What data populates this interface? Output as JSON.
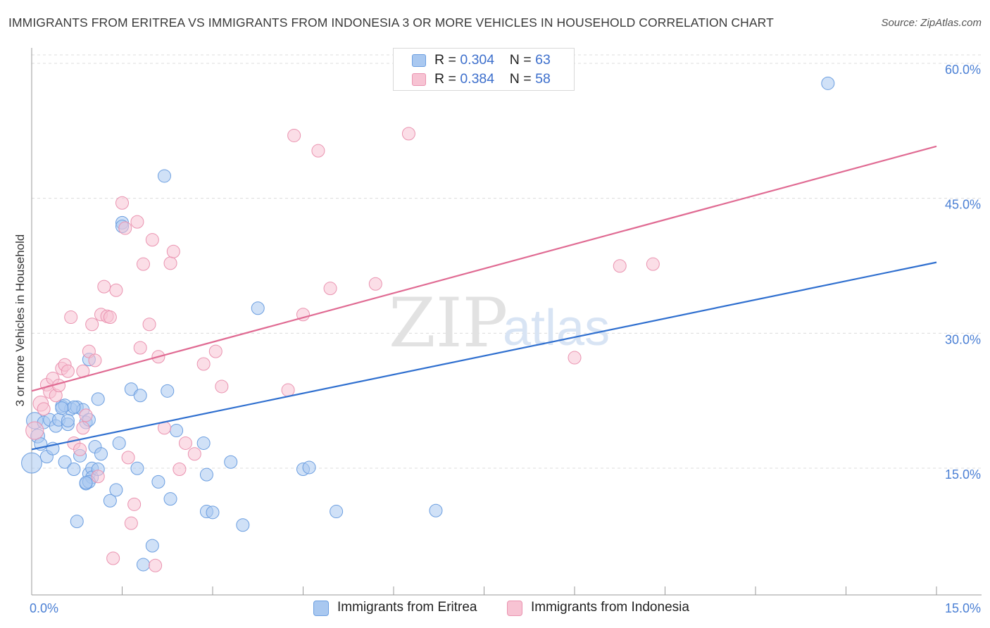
{
  "title": "IMMIGRANTS FROM ERITREA VS IMMIGRANTS FROM INDONESIA 3 OR MORE VEHICLES IN HOUSEHOLD CORRELATION CHART",
  "source": "Source: ZipAtlas.com",
  "colors": {
    "blue_fill": "#a9c8f0",
    "blue_stroke": "#6b9ee0",
    "blue_line": "#2f6fcf",
    "pink_fill": "#f7c3d3",
    "pink_stroke": "#ea93b0",
    "pink_line": "#e06b93",
    "accent_text": "#4a7fd4"
  },
  "legend": {
    "rows": [
      {
        "r_label": "R = ",
        "r_value": "0.304",
        "n_label": "N = ",
        "n_value": "63"
      },
      {
        "r_label": "R = ",
        "r_value": "0.384",
        "n_label": "N = ",
        "n_value": "58"
      }
    ]
  },
  "bottom_legend": {
    "eritrea": "Immigrants from Eritrea",
    "indonesia": "Immigrants from Indonesia"
  },
  "watermark": {
    "zip": "ZIP",
    "atlas": "atlas"
  },
  "chart_data": {
    "type": "scatter",
    "title": "IMMIGRANTS FROM ERITREA VS IMMIGRANTS FROM INDONESIA 3 OR MORE VEHICLES IN HOUSEHOLD CORRELATION CHART",
    "xlabel": "",
    "ylabel": "3 or more Vehicles in Household",
    "xlim": [
      0,
      15
    ],
    "ylim": [
      0,
      62
    ],
    "x_tick_labels": [
      "0.0%",
      "15.0%"
    ],
    "y_ticks": [
      15,
      30,
      45,
      60
    ],
    "y_tick_labels": [
      "15.0%",
      "30.0%",
      "45.0%",
      "60.0%"
    ],
    "grid": true,
    "series": [
      {
        "name": "Immigrants from Eritrea",
        "r": 0.304,
        "n": 63,
        "trend": {
          "x": [
            0,
            15
          ],
          "y": [
            16.3,
            37.1
          ]
        },
        "points": [
          [
            0.0,
            14.8,
            1.6
          ],
          [
            0.05,
            19.5,
            1.3
          ],
          [
            0.1,
            17.8,
            1.1
          ],
          [
            0.15,
            16.9,
            1.0
          ],
          [
            0.2,
            19.3,
            1.0
          ],
          [
            0.25,
            15.5,
            1.0
          ],
          [
            0.3,
            19.6,
            1.0
          ],
          [
            0.35,
            16.4,
            1.0
          ],
          [
            0.4,
            18.9,
            1.0
          ],
          [
            0.45,
            19.6,
            1.0
          ],
          [
            0.5,
            21.1,
            1.0
          ],
          [
            0.55,
            14.9,
            1.0
          ],
          [
            0.6,
            19.1,
            1.0
          ],
          [
            0.65,
            20.8,
            1.0
          ],
          [
            0.7,
            14.1,
            1.0
          ],
          [
            0.75,
            21.0,
            1.0
          ],
          [
            0.8,
            15.6,
            1.0
          ],
          [
            0.85,
            20.7,
            1.0
          ],
          [
            0.9,
            19.3,
            1.0
          ],
          [
            0.95,
            13.6,
            1.0
          ],
          [
            0.55,
            21.2,
            1.0
          ],
          [
            0.7,
            21.0,
            1.0
          ],
          [
            0.75,
            8.3,
            1.0
          ],
          [
            0.6,
            19.5,
            1.0
          ],
          [
            0.9,
            12.5,
            1.0
          ],
          [
            0.95,
            19.6,
            1.0
          ],
          [
            1.0,
            14.2,
            1.0
          ],
          [
            0.95,
            26.3,
            1.0
          ],
          [
            1.0,
            13.2,
            1.0
          ],
          [
            1.05,
            16.6,
            1.0
          ],
          [
            1.1,
            21.9,
            1.0
          ],
          [
            1.15,
            15.8,
            1.0
          ],
          [
            0.95,
            12.7,
            1.0
          ],
          [
            0.9,
            12.6,
            1.0
          ],
          [
            1.3,
            10.6,
            1.0
          ],
          [
            1.4,
            11.8,
            1.0
          ],
          [
            1.45,
            17.0,
            1.0
          ],
          [
            1.5,
            41.5,
            1.0
          ],
          [
            1.5,
            41.1,
            1.0
          ],
          [
            1.65,
            23.0,
            1.0
          ],
          [
            1.8,
            22.3,
            1.0
          ],
          [
            1.75,
            14.2,
            1.0
          ],
          [
            1.85,
            3.5,
            1.0
          ],
          [
            2.0,
            5.6,
            1.0
          ],
          [
            2.1,
            12.7,
            1.0
          ],
          [
            2.2,
            46.7,
            1.0
          ],
          [
            2.25,
            22.8,
            1.0
          ],
          [
            2.3,
            10.8,
            1.0
          ],
          [
            2.4,
            18.4,
            1.0
          ],
          [
            2.85,
            17.0,
            1.0
          ],
          [
            2.9,
            13.5,
            1.0
          ],
          [
            2.9,
            9.4,
            1.0
          ],
          [
            3.0,
            9.3,
            1.0
          ],
          [
            3.3,
            14.9,
            1.0
          ],
          [
            3.5,
            7.9,
            1.0
          ],
          [
            3.75,
            32.0,
            1.0
          ],
          [
            4.5,
            14.1,
            1.0
          ],
          [
            4.6,
            14.3,
            1.0
          ],
          [
            5.05,
            9.4,
            1.0
          ],
          [
            6.7,
            9.5,
            1.0
          ],
          [
            13.2,
            57.0,
            1.0
          ],
          [
            0.5,
            20.9,
            1.0
          ],
          [
            1.1,
            14.1,
            1.0
          ]
        ]
      },
      {
        "name": "Immigrants from Indonesia",
        "r": 0.384,
        "n": 58,
        "trend": {
          "x": [
            0,
            15
          ],
          "y": [
            22.8,
            50.0
          ]
        },
        "points": [
          [
            0.05,
            18.4,
            1.4
          ],
          [
            0.15,
            21.4,
            1.2
          ],
          [
            0.2,
            20.8,
            1.0
          ],
          [
            0.25,
            23.5,
            1.0
          ],
          [
            0.3,
            22.7,
            1.0
          ],
          [
            0.35,
            24.2,
            1.0
          ],
          [
            0.4,
            22.3,
            1.0
          ],
          [
            0.45,
            23.4,
            1.0
          ],
          [
            0.5,
            25.3,
            1.0
          ],
          [
            0.55,
            25.7,
            1.0
          ],
          [
            0.6,
            25.0,
            1.0
          ],
          [
            0.65,
            31.0,
            1.0
          ],
          [
            0.7,
            17.0,
            1.0
          ],
          [
            0.8,
            16.3,
            1.0
          ],
          [
            0.85,
            18.7,
            1.0
          ],
          [
            0.9,
            20.1,
            1.0
          ],
          [
            0.95,
            27.2,
            1.0
          ],
          [
            1.0,
            30.2,
            1.0
          ],
          [
            1.05,
            26.2,
            1.0
          ],
          [
            1.1,
            13.3,
            1.0
          ],
          [
            1.15,
            31.3,
            1.0
          ],
          [
            1.2,
            34.4,
            1.0
          ],
          [
            1.25,
            31.1,
            1.0
          ],
          [
            1.3,
            31.0,
            1.0
          ],
          [
            1.35,
            4.2,
            1.0
          ],
          [
            1.4,
            34.0,
            1.0
          ],
          [
            1.5,
            43.7,
            1.0
          ],
          [
            1.55,
            40.9,
            1.0
          ],
          [
            1.6,
            15.4,
            1.0
          ],
          [
            1.65,
            8.1,
            1.0
          ],
          [
            1.7,
            10.2,
            1.0
          ],
          [
            1.75,
            41.6,
            1.0
          ],
          [
            1.8,
            27.6,
            1.0
          ],
          [
            1.85,
            36.9,
            1.0
          ],
          [
            1.95,
            30.2,
            1.0
          ],
          [
            2.0,
            39.6,
            1.0
          ],
          [
            2.05,
            3.4,
            1.0
          ],
          [
            2.1,
            26.6,
            1.0
          ],
          [
            2.2,
            18.7,
            1.0
          ],
          [
            2.3,
            37.0,
            1.0
          ],
          [
            2.35,
            38.3,
            1.0
          ],
          [
            2.45,
            14.1,
            1.0
          ],
          [
            2.55,
            17.0,
            1.0
          ],
          [
            2.7,
            15.8,
            1.0
          ],
          [
            2.85,
            25.8,
            1.0
          ],
          [
            3.05,
            27.2,
            1.0
          ],
          [
            3.15,
            23.3,
            1.0
          ],
          [
            4.25,
            22.9,
            1.0
          ],
          [
            4.35,
            51.2,
            1.0
          ],
          [
            4.5,
            31.3,
            1.0
          ],
          [
            4.75,
            49.5,
            1.0
          ],
          [
            4.95,
            34.2,
            1.0
          ],
          [
            5.7,
            34.7,
            1.0
          ],
          [
            6.25,
            51.4,
            1.0
          ],
          [
            9.0,
            26.5,
            1.0
          ],
          [
            9.75,
            36.7,
            1.0
          ],
          [
            10.3,
            36.9,
            1.0
          ],
          [
            0.85,
            25.0,
            1.0
          ]
        ]
      }
    ]
  }
}
